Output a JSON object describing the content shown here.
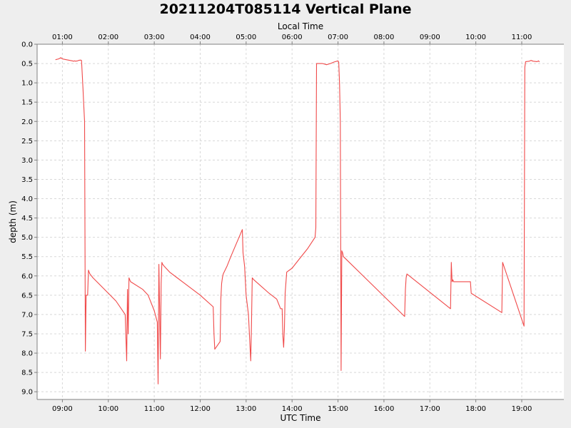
{
  "chart_data": {
    "type": "line",
    "title": "20211204T085114 Vertical Plane",
    "xlabel": "UTC Time",
    "top_xlabel": "Local Time",
    "ylabel": "depth (m)",
    "y_inverted": true,
    "ylim": [
      0.0,
      9.2
    ],
    "xlim": [
      "08:27",
      "19:55"
    ],
    "grid": true,
    "line_color": "#f04a4a",
    "x_ticks": [
      "09:00",
      "10:00",
      "11:00",
      "12:00",
      "13:00",
      "14:00",
      "15:00",
      "16:00",
      "17:00",
      "18:00",
      "19:00"
    ],
    "top_x_ticks": [
      "01:00",
      "02:00",
      "03:00",
      "04:00",
      "05:00",
      "06:00",
      "07:00",
      "08:00",
      "09:00",
      "10:00",
      "11:00"
    ],
    "y_ticks": [
      "0.0",
      "0.5",
      "1.0",
      "1.5",
      "2.0",
      "2.5",
      "3.0",
      "3.5",
      "4.0",
      "4.5",
      "5.0",
      "5.5",
      "6.0",
      "6.5",
      "7.0",
      "7.5",
      "8.0",
      "8.5",
      "9.0"
    ],
    "series": [
      {
        "x": [
          "08:51",
          "08:55",
          "08:58",
          "09:00",
          "09:05",
          "09:10",
          "09:15",
          "09:16",
          "09:17",
          "09:20",
          "09:21",
          "09:24",
          "09:25",
          "09:26",
          "09:27",
          "09:28",
          "09:29",
          "09:30",
          "09:31",
          "09:33",
          "09:34",
          "09:35",
          "09:36",
          "09:40",
          "09:50",
          "10:00",
          "10:10",
          "10:22",
          "10:24",
          "10:25",
          "10:26",
          "10:27",
          "10:28",
          "10:29",
          "10:45",
          "10:52",
          "11:00",
          "11:04",
          "11:05",
          "11:06",
          "11:07",
          "11:08",
          "11:09",
          "11:10",
          "11:11",
          "11:13",
          "11:20",
          "11:30",
          "11:40",
          "12:00",
          "12:17",
          "12:18",
          "12:19",
          "12:26",
          "12:27",
          "12:28",
          "12:29",
          "12:30",
          "12:35",
          "12:40",
          "12:55",
          "12:56",
          "12:58",
          "13:00",
          "13:03",
          "13:05",
          "13:06",
          "13:07",
          "13:08",
          "13:10",
          "13:30",
          "13:40",
          "13:45",
          "13:47",
          "13:48",
          "13:49",
          "13:50",
          "13:51",
          "13:53",
          "14:00",
          "14:10",
          "14:20",
          "14:30",
          "14:31",
          "14:32",
          "14:40",
          "14:45",
          "14:50",
          "14:55",
          "15:00",
          "15:01",
          "15:02",
          "15:03",
          "15:04",
          "15:05",
          "15:06",
          "15:07",
          "16:27",
          "16:28",
          "16:29",
          "16:30",
          "17:27",
          "17:28",
          "17:29",
          "17:30",
          "17:31",
          "17:53",
          "17:54",
          "18:34",
          "18:35",
          "19:03",
          "19:04",
          "19:05",
          "19:10",
          "19:12",
          "19:15",
          "19:20",
          "19:22",
          "19:23"
        ],
        "y": [
          0.4,
          0.38,
          0.35,
          0.38,
          0.4,
          0.42,
          0.44,
          0.43,
          0.44,
          0.43,
          0.42,
          0.41,
          0.42,
          0.8,
          1.2,
          1.6,
          2.0,
          7.95,
          6.5,
          6.5,
          5.85,
          5.9,
          5.95,
          6.05,
          6.25,
          6.45,
          6.65,
          7.0,
          8.2,
          6.35,
          7.5,
          6.05,
          6.1,
          6.15,
          6.35,
          6.5,
          6.9,
          7.2,
          8.8,
          5.7,
          6.8,
          8.15,
          6.2,
          5.65,
          5.7,
          5.75,
          5.9,
          6.05,
          6.2,
          6.5,
          6.8,
          7.5,
          7.9,
          7.7,
          6.6,
          6.2,
          6.05,
          5.95,
          5.75,
          5.5,
          4.8,
          5.4,
          5.75,
          6.5,
          7.0,
          7.8,
          8.2,
          7.3,
          6.05,
          6.1,
          6.45,
          6.6,
          6.85,
          6.85,
          7.55,
          7.85,
          7.35,
          6.45,
          5.9,
          5.8,
          5.55,
          5.3,
          5.0,
          4.75,
          0.5,
          0.5,
          0.53,
          0.5,
          0.46,
          0.43,
          0.47,
          1.0,
          2.0,
          8.45,
          5.35,
          5.4,
          5.5,
          7.05,
          6.35,
          6.05,
          5.95,
          6.85,
          5.65,
          6.15,
          6.1,
          6.15,
          6.15,
          6.45,
          6.95,
          5.65,
          7.3,
          0.6,
          0.45,
          0.44,
          0.42,
          0.44,
          0.45,
          0.43,
          0.46
        ]
      }
    ]
  }
}
